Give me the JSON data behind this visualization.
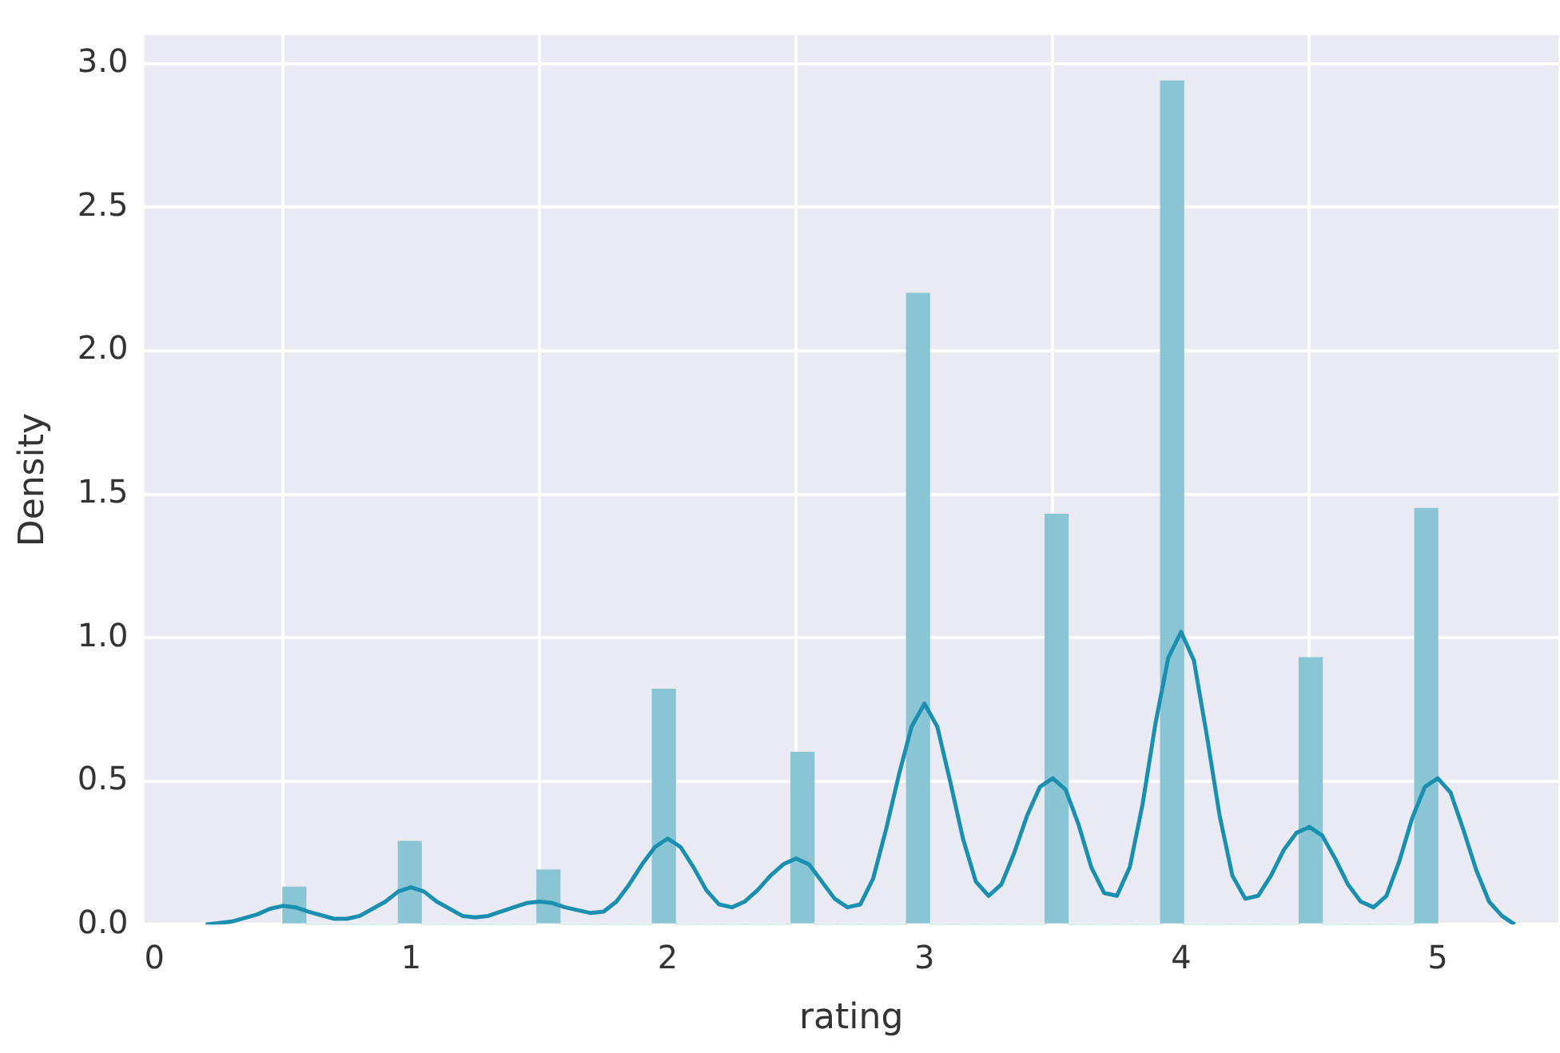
{
  "chart_data": {
    "type": "histogram",
    "xlabel": "rating",
    "ylabel": "Density",
    "xlim": [
      -0.04,
      5.47
    ],
    "ylim": [
      0,
      3.1
    ],
    "xticks": [
      0,
      1,
      2,
      3,
      4,
      5
    ],
    "yticks": [
      {
        "value": 0,
        "label": "0.0"
      },
      0.5,
      {
        "value": 1,
        "label": "1.0"
      },
      1.5,
      {
        "value": 2,
        "label": "2.0"
      },
      2.5,
      {
        "value": 3,
        "label": "3.0"
      }
    ],
    "grid": true,
    "legend": false,
    "series": [
      {
        "type": "histogram",
        "color": "#8ac5d6",
        "bins": [
          0.5,
          0.59,
          0.68,
          0.77,
          0.86,
          0.95,
          1.04,
          1.13,
          1.22,
          1.31,
          1.4,
          1.49,
          1.58,
          1.67,
          1.76,
          1.85,
          1.94,
          2.03,
          2.12,
          2.21,
          2.3,
          2.39,
          2.48,
          2.57,
          2.66,
          2.75,
          2.84,
          2.93,
          3.02,
          3.11,
          3.2,
          3.29,
          3.38,
          3.47,
          3.56,
          3.65,
          3.74,
          3.83,
          3.92,
          4.01,
          4.1,
          4.19,
          4.28,
          4.37,
          4.46,
          4.55,
          4.64,
          4.73,
          4.82,
          4.91,
          5.0
        ],
        "values": [
          0.13,
          0,
          0,
          0,
          0,
          0.29,
          0,
          0,
          0,
          0,
          0,
          0.19,
          0,
          0,
          0,
          0,
          0.82,
          0,
          0,
          0,
          0,
          0,
          0.6,
          0,
          0,
          0,
          0,
          2.2,
          0,
          0,
          0,
          0,
          0,
          1.43,
          0,
          0,
          0,
          0,
          2.94,
          0,
          0,
          0,
          0,
          0,
          0.93,
          0,
          0,
          0,
          0,
          1.45
        ]
      },
      {
        "type": "line",
        "color": "#1a8fb0",
        "x": [
          0.2,
          0.3,
          0.4,
          0.45,
          0.5,
          0.55,
          0.6,
          0.7,
          0.75,
          0.8,
          0.9,
          0.95,
          1.0,
          1.05,
          1.1,
          1.2,
          1.25,
          1.3,
          1.4,
          1.45,
          1.5,
          1.55,
          1.6,
          1.7,
          1.75,
          1.8,
          1.85,
          1.9,
          1.95,
          2.0,
          2.05,
          2.1,
          2.15,
          2.2,
          2.25,
          2.3,
          2.35,
          2.4,
          2.45,
          2.5,
          2.55,
          2.6,
          2.65,
          2.7,
          2.75,
          2.8,
          2.85,
          2.9,
          2.95,
          3.0,
          3.05,
          3.1,
          3.15,
          3.2,
          3.25,
          3.3,
          3.35,
          3.4,
          3.45,
          3.5,
          3.55,
          3.6,
          3.65,
          3.7,
          3.75,
          3.8,
          3.85,
          3.9,
          3.95,
          4.0,
          4.05,
          4.1,
          4.15,
          4.2,
          4.25,
          4.3,
          4.35,
          4.4,
          4.45,
          4.5,
          4.55,
          4.6,
          4.65,
          4.7,
          4.75,
          4.8,
          4.85,
          4.9,
          4.95,
          5.0,
          5.05,
          5.1,
          5.15,
          5.2,
          5.25,
          5.3
        ],
        "values": [
          0,
          0.01,
          0.035,
          0.055,
          0.065,
          0.06,
          0.045,
          0.02,
          0.02,
          0.03,
          0.08,
          0.115,
          0.13,
          0.115,
          0.08,
          0.03,
          0.025,
          0.03,
          0.06,
          0.075,
          0.08,
          0.075,
          0.06,
          0.04,
          0.045,
          0.08,
          0.14,
          0.21,
          0.27,
          0.3,
          0.27,
          0.2,
          0.12,
          0.07,
          0.06,
          0.08,
          0.12,
          0.17,
          0.21,
          0.23,
          0.21,
          0.15,
          0.09,
          0.06,
          0.07,
          0.16,
          0.33,
          0.52,
          0.69,
          0.77,
          0.69,
          0.5,
          0.3,
          0.15,
          0.1,
          0.14,
          0.25,
          0.38,
          0.48,
          0.51,
          0.47,
          0.35,
          0.2,
          0.11,
          0.1,
          0.2,
          0.42,
          0.7,
          0.93,
          1.02,
          0.92,
          0.66,
          0.38,
          0.17,
          0.09,
          0.1,
          0.17,
          0.26,
          0.32,
          0.34,
          0.31,
          0.23,
          0.14,
          0.08,
          0.06,
          0.1,
          0.22,
          0.37,
          0.48,
          0.51,
          0.46,
          0.33,
          0.19,
          0.08,
          0.03,
          0
        ]
      }
    ]
  }
}
